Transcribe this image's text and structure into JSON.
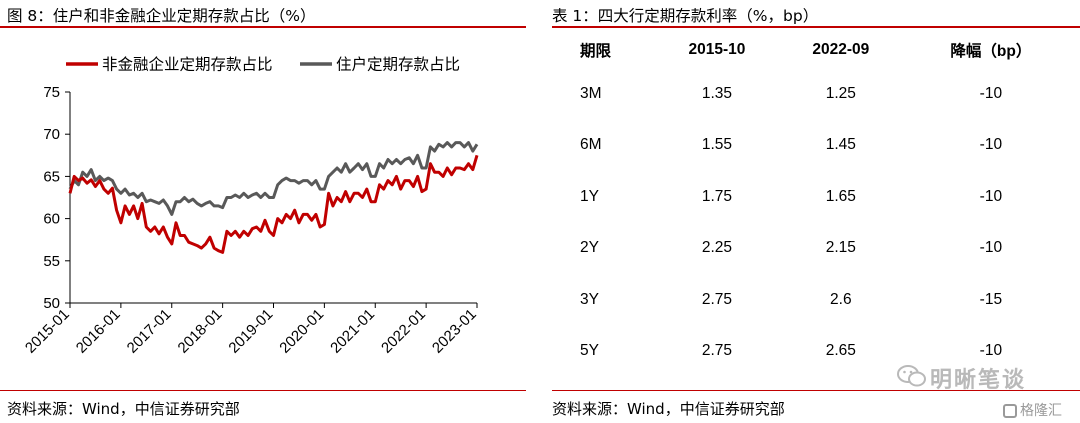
{
  "left_panel": {
    "title": "图 8：住户和非金融企业定期存款占比（%）",
    "source": "资料来源：Wind，中信证券研究部"
  },
  "right_panel": {
    "title": "表 1：四大行定期存款利率（%，bp）",
    "source": "资料来源：Wind，中信证券研究部",
    "headers": [
      "期限",
      "2015-10",
      "2022-09",
      "降幅（bp）"
    ],
    "rows": [
      [
        "3M",
        "1.35",
        "1.25",
        "-10"
      ],
      [
        "6M",
        "1.55",
        "1.45",
        "-10"
      ],
      [
        "1Y",
        "1.75",
        "1.65",
        "-10"
      ],
      [
        "2Y",
        "2.25",
        "2.15",
        "-10"
      ],
      [
        "3Y",
        "2.75",
        "2.6",
        "-15"
      ],
      [
        "5Y",
        "2.75",
        "2.65",
        "-10"
      ]
    ]
  },
  "watermark": {
    "text": "明晰笔谈",
    "text2": "格隆汇"
  },
  "chart_data": {
    "type": "line",
    "title": "住户和非金融企业定期存款占比（%）",
    "ylim": [
      50,
      75
    ],
    "yticks": [
      50,
      55,
      60,
      65,
      70,
      75
    ],
    "x_ticks": [
      "2015-01",
      "2016-01",
      "2017-01",
      "2018-01",
      "2019-01",
      "2020-01",
      "2021-01",
      "2022-01",
      "2023-01"
    ],
    "x_start": "2015-01",
    "x_end": "2023-01",
    "legend_position": "top",
    "grid": false,
    "colors": {
      "corporate": "#c00000",
      "household": "#595959"
    },
    "series": [
      {
        "name": "非金融企业定期存款占比",
        "color": "#c00000",
        "x": [
          "2015-01",
          "2015-02",
          "2015-03",
          "2015-04",
          "2015-05",
          "2015-06",
          "2015-07",
          "2015-08",
          "2015-09",
          "2015-10",
          "2015-11",
          "2015-12",
          "2016-01",
          "2016-02",
          "2016-03",
          "2016-04",
          "2016-05",
          "2016-06",
          "2016-07",
          "2016-08",
          "2016-09",
          "2016-10",
          "2016-11",
          "2016-12",
          "2017-01",
          "2017-02",
          "2017-03",
          "2017-04",
          "2017-05",
          "2017-06",
          "2017-07",
          "2017-08",
          "2017-09",
          "2017-10",
          "2017-11",
          "2017-12",
          "2018-01",
          "2018-02",
          "2018-03",
          "2018-04",
          "2018-05",
          "2018-06",
          "2018-07",
          "2018-08",
          "2018-09",
          "2018-10",
          "2018-11",
          "2018-12",
          "2019-01",
          "2019-02",
          "2019-03",
          "2019-04",
          "2019-05",
          "2019-06",
          "2019-07",
          "2019-08",
          "2019-09",
          "2019-10",
          "2019-11",
          "2019-12",
          "2020-01",
          "2020-02",
          "2020-03",
          "2020-04",
          "2020-05",
          "2020-06",
          "2020-07",
          "2020-08",
          "2020-09",
          "2020-10",
          "2020-11",
          "2020-12",
          "2021-01",
          "2021-02",
          "2021-03",
          "2021-04",
          "2021-05",
          "2021-06",
          "2021-07",
          "2021-08",
          "2021-09",
          "2021-10",
          "2021-11",
          "2021-12",
          "2022-01",
          "2022-02",
          "2022-03",
          "2022-04",
          "2022-05",
          "2022-06",
          "2022-07",
          "2022-08",
          "2022-09",
          "2022-10",
          "2022-11",
          "2022-12",
          "2023-01"
        ],
        "values": [
          63.0,
          65.0,
          64.5,
          64.8,
          64.2,
          64.6,
          63.8,
          64.5,
          63.5,
          63.0,
          63.6,
          61.0,
          59.5,
          61.5,
          60.5,
          61.5,
          60.0,
          61.8,
          59.0,
          58.5,
          59.0,
          58.2,
          59.0,
          57.8,
          57.0,
          59.5,
          58.0,
          58.0,
          57.2,
          57.0,
          56.8,
          56.5,
          57.0,
          57.8,
          56.5,
          56.2,
          56.0,
          58.5,
          58.0,
          58.5,
          57.8,
          58.5,
          58.0,
          58.8,
          59.0,
          58.5,
          59.8,
          58.5,
          58.0,
          60.0,
          59.5,
          60.5,
          60.0,
          61.0,
          59.5,
          60.5,
          60.5,
          59.8,
          60.5,
          59.0,
          59.3,
          63.0,
          61.5,
          62.5,
          62.0,
          63.2,
          62.0,
          63.0,
          63.0,
          62.5,
          63.5,
          62.0,
          62.0,
          64.0,
          63.5,
          64.5,
          64.0,
          65.0,
          63.5,
          64.5,
          64.5,
          63.8,
          65.0,
          63.2,
          63.5,
          66.5,
          65.5,
          65.5,
          65.0,
          66.0,
          65.2,
          66.0,
          66.0,
          65.8,
          66.5,
          65.8,
          67.5
        ]
      },
      {
        "name": "住户定期存款占比",
        "color": "#595959",
        "x": [
          "2015-01",
          "2015-02",
          "2015-03",
          "2015-04",
          "2015-05",
          "2015-06",
          "2015-07",
          "2015-08",
          "2015-09",
          "2015-10",
          "2015-11",
          "2015-12",
          "2016-01",
          "2016-02",
          "2016-03",
          "2016-04",
          "2016-05",
          "2016-06",
          "2016-07",
          "2016-08",
          "2016-09",
          "2016-10",
          "2016-11",
          "2016-12",
          "2017-01",
          "2017-02",
          "2017-03",
          "2017-04",
          "2017-05",
          "2017-06",
          "2017-07",
          "2017-08",
          "2017-09",
          "2017-10",
          "2017-11",
          "2017-12",
          "2018-01",
          "2018-02",
          "2018-03",
          "2018-04",
          "2018-05",
          "2018-06",
          "2018-07",
          "2018-08",
          "2018-09",
          "2018-10",
          "2018-11",
          "2018-12",
          "2019-01",
          "2019-02",
          "2019-03",
          "2019-04",
          "2019-05",
          "2019-06",
          "2019-07",
          "2019-08",
          "2019-09",
          "2019-10",
          "2019-11",
          "2019-12",
          "2020-01",
          "2020-02",
          "2020-03",
          "2020-04",
          "2020-05",
          "2020-06",
          "2020-07",
          "2020-08",
          "2020-09",
          "2020-10",
          "2020-11",
          "2020-12",
          "2021-01",
          "2021-02",
          "2021-03",
          "2021-04",
          "2021-05",
          "2021-06",
          "2021-07",
          "2021-08",
          "2021-09",
          "2021-10",
          "2021-11",
          "2021-12",
          "2022-01",
          "2022-02",
          "2022-03",
          "2022-04",
          "2022-05",
          "2022-06",
          "2022-07",
          "2022-08",
          "2022-09",
          "2022-10",
          "2022-11",
          "2022-12",
          "2023-01"
        ],
        "values": [
          63.5,
          64.5,
          64.0,
          65.5,
          65.0,
          65.8,
          64.5,
          65.0,
          64.5,
          64.8,
          64.5,
          63.5,
          63.0,
          63.5,
          62.8,
          63.0,
          62.5,
          63.0,
          62.0,
          62.2,
          62.0,
          61.8,
          62.2,
          61.5,
          60.5,
          62.0,
          62.0,
          62.5,
          62.0,
          62.3,
          61.8,
          61.5,
          61.8,
          62.0,
          61.5,
          61.5,
          61.3,
          62.5,
          62.5,
          62.8,
          62.5,
          63.0,
          62.5,
          62.8,
          63.0,
          62.5,
          63.0,
          62.5,
          62.5,
          64.0,
          64.5,
          64.8,
          64.5,
          64.5,
          64.2,
          64.5,
          64.5,
          64.0,
          64.5,
          63.5,
          63.5,
          65.0,
          65.5,
          66.0,
          65.5,
          66.5,
          65.5,
          66.0,
          66.5,
          65.8,
          66.5,
          65.0,
          65.0,
          66.5,
          66.0,
          67.0,
          66.5,
          67.0,
          66.5,
          67.0,
          67.2,
          66.5,
          67.5,
          66.0,
          66.0,
          68.5,
          68.0,
          68.8,
          68.5,
          69.0,
          68.5,
          69.0,
          69.0,
          68.5,
          69.0,
          68.0,
          68.8
        ]
      }
    ]
  }
}
